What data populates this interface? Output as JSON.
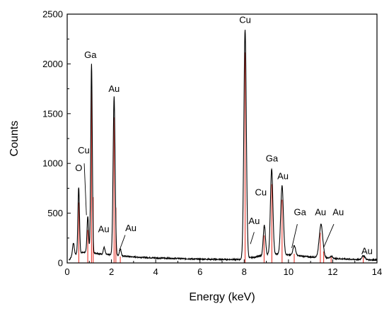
{
  "chart_data": {
    "type": "line",
    "xlabel": "Energy (keV)",
    "ylabel": "Counts",
    "xlim": [
      0,
      14
    ],
    "ylim": [
      0,
      2500
    ],
    "xticks": [
      0,
      2,
      4,
      6,
      8,
      10,
      12,
      14
    ],
    "yticks": [
      0,
      500,
      1000,
      1500,
      2000,
      2500
    ],
    "grid": false,
    "legend": "none",
    "series": [
      {
        "color": "#000000",
        "baseline": [
          [
            0,
            10
          ],
          [
            0.2,
            60
          ],
          [
            0.5,
            100
          ],
          [
            1.0,
            110
          ],
          [
            1.5,
            90
          ],
          [
            2.0,
            80
          ],
          [
            2.5,
            70
          ],
          [
            3.0,
            60
          ],
          [
            4.0,
            50
          ],
          [
            5.0,
            45
          ],
          [
            6.0,
            38
          ],
          [
            7.0,
            35
          ],
          [
            7.8,
            35
          ],
          [
            8.5,
            60
          ],
          [
            9.0,
            80
          ],
          [
            9.5,
            90
          ],
          [
            10.0,
            80
          ],
          [
            10.5,
            70
          ],
          [
            11.0,
            60
          ],
          [
            11.5,
            55
          ],
          [
            12.0,
            45
          ],
          [
            13.0,
            35
          ],
          [
            14.0,
            30
          ]
        ],
        "peaks": [
          {
            "x": 0.28,
            "h": 130,
            "w": 0.04
          },
          {
            "x": 0.52,
            "h": 660,
            "w": 0.035
          },
          {
            "x": 0.93,
            "h": 360,
            "w": 0.035
          },
          {
            "x": 1.1,
            "h": 1890,
            "w": 0.035
          },
          {
            "x": 1.67,
            "h": 70,
            "w": 0.04
          },
          {
            "x": 2.12,
            "h": 1590,
            "w": 0.045
          },
          {
            "x": 2.4,
            "h": 70,
            "w": 0.04
          },
          {
            "x": 8.04,
            "h": 2300,
            "w": 0.055
          },
          {
            "x": 8.91,
            "h": 300,
            "w": 0.05
          },
          {
            "x": 9.24,
            "h": 860,
            "w": 0.055
          },
          {
            "x": 9.71,
            "h": 690,
            "w": 0.06
          },
          {
            "x": 10.26,
            "h": 100,
            "w": 0.06
          },
          {
            "x": 11.47,
            "h": 330,
            "w": 0.08
          },
          {
            "x": 11.94,
            "h": 20,
            "w": 0.06
          },
          {
            "x": 13.39,
            "h": 40,
            "w": 0.07
          }
        ]
      }
    ],
    "reference_lines": {
      "color": "#e8453c",
      "x": [
        0.525,
        0.93,
        1.1,
        1.175,
        2.12,
        2.2,
        2.4,
        8.04,
        8.9,
        9.25,
        9.71,
        10.26,
        11.44,
        11.59,
        11.93,
        13.38
      ]
    },
    "annotations": [
      {
        "text": "O",
        "x": 0.52,
        "y": 925
      },
      {
        "text": "Cu",
        "x": 0.75,
        "y": 1100
      },
      {
        "text": "Ga",
        "x": 1.05,
        "y": 2060
      },
      {
        "text": "Au",
        "x": 2.12,
        "y": 1720
      },
      {
        "text": "Au",
        "x": 1.65,
        "y": 310
      },
      {
        "text": "Au",
        "x": 2.88,
        "y": 320
      },
      {
        "text": "Cu",
        "x": 8.04,
        "y": 2410
      },
      {
        "text": "Au",
        "x": 8.45,
        "y": 390
      },
      {
        "text": "Cu",
        "x": 8.75,
        "y": 680
      },
      {
        "text": "Ga",
        "x": 9.25,
        "y": 1020
      },
      {
        "text": "Au",
        "x": 9.75,
        "y": 840
      },
      {
        "text": "Ga",
        "x": 10.52,
        "y": 480
      },
      {
        "text": "Au",
        "x": 11.45,
        "y": 480
      },
      {
        "text": "Au",
        "x": 12.25,
        "y": 480
      },
      {
        "text": "Au",
        "x": 13.55,
        "y": 90
      }
    ],
    "leaders": [
      {
        "from": [
          0.77,
          1000
        ],
        "to": [
          0.87,
          480
        ]
      },
      {
        "from": [
          2.62,
          280
        ],
        "to": [
          2.35,
          120
        ]
      },
      {
        "from": [
          8.45,
          310
        ],
        "to": [
          8.28,
          190
        ]
      },
      {
        "from": [
          10.4,
          390
        ],
        "to": [
          10.15,
          150
        ]
      },
      {
        "from": [
          12.05,
          390
        ],
        "to": [
          11.6,
          160
        ]
      }
    ]
  }
}
